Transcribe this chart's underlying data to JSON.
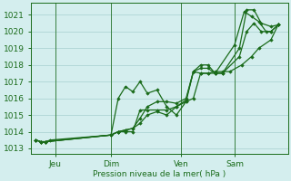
{
  "background_color": "#d4eeee",
  "grid_color": "#aed4d4",
  "line_color": "#1a6b1a",
  "marker_color": "#1a6b1a",
  "ylabel_ticks": [
    1013,
    1014,
    1015,
    1016,
    1017,
    1018,
    1019,
    1020,
    1021
  ],
  "ylim": [
    1012.7,
    1021.7
  ],
  "xlabel": "Pression niveau de la mer( hPa )",
  "day_labels": [
    "Jeu",
    "Dim",
    "Ven",
    "Sam"
  ],
  "day_positions": [
    0.08,
    0.31,
    0.6,
    0.82
  ],
  "series": [
    {
      "points": [
        [
          0.0,
          1013.5
        ],
        [
          0.02,
          1013.4
        ],
        [
          0.04,
          1013.4
        ],
        [
          0.06,
          1013.5
        ],
        [
          0.31,
          1013.8
        ],
        [
          0.34,
          1016.0
        ],
        [
          0.37,
          1016.7
        ],
        [
          0.4,
          1016.4
        ],
        [
          0.43,
          1017.0
        ],
        [
          0.46,
          1016.3
        ],
        [
          0.5,
          1016.5
        ],
        [
          0.54,
          1015.5
        ],
        [
          0.58,
          1015.0
        ],
        [
          0.62,
          1015.8
        ],
        [
          0.65,
          1017.6
        ],
        [
          0.68,
          1017.5
        ],
        [
          0.71,
          1017.5
        ],
        [
          0.74,
          1017.5
        ],
        [
          0.82,
          1019.2
        ],
        [
          0.86,
          1021.2
        ],
        [
          0.89,
          1020.9
        ],
        [
          0.92,
          1020.6
        ],
        [
          0.95,
          1020.0
        ],
        [
          0.97,
          1020.0
        ],
        [
          1.0,
          1020.4
        ]
      ]
    },
    {
      "points": [
        [
          0.0,
          1013.5
        ],
        [
          0.02,
          1013.4
        ],
        [
          0.04,
          1013.4
        ],
        [
          0.31,
          1013.8
        ],
        [
          0.34,
          1014.0
        ],
        [
          0.37,
          1014.0
        ],
        [
          0.4,
          1014.0
        ],
        [
          0.43,
          1015.3
        ],
        [
          0.46,
          1015.3
        ],
        [
          0.5,
          1015.3
        ],
        [
          0.54,
          1015.3
        ],
        [
          0.58,
          1015.5
        ],
        [
          0.62,
          1015.8
        ],
        [
          0.65,
          1016.0
        ],
        [
          0.68,
          1017.5
        ],
        [
          0.71,
          1017.5
        ],
        [
          0.74,
          1017.6
        ],
        [
          0.77,
          1017.6
        ],
        [
          0.8,
          1017.6
        ],
        [
          0.85,
          1018.0
        ],
        [
          0.89,
          1018.5
        ],
        [
          0.92,
          1019.0
        ],
        [
          0.97,
          1019.5
        ],
        [
          1.0,
          1020.4
        ]
      ]
    },
    {
      "points": [
        [
          0.0,
          1013.5
        ],
        [
          0.02,
          1013.4
        ],
        [
          0.04,
          1013.4
        ],
        [
          0.31,
          1013.8
        ],
        [
          0.34,
          1014.0
        ],
        [
          0.37,
          1014.1
        ],
        [
          0.4,
          1014.2
        ],
        [
          0.43,
          1014.5
        ],
        [
          0.46,
          1015.0
        ],
        [
          0.5,
          1015.2
        ],
        [
          0.54,
          1015.0
        ],
        [
          0.58,
          1015.5
        ],
        [
          0.62,
          1015.9
        ],
        [
          0.65,
          1017.6
        ],
        [
          0.68,
          1018.0
        ],
        [
          0.71,
          1018.0
        ],
        [
          0.74,
          1017.5
        ],
        [
          0.77,
          1017.5
        ],
        [
          0.84,
          1019.0
        ],
        [
          0.87,
          1021.3
        ],
        [
          0.9,
          1021.3
        ],
        [
          0.93,
          1020.5
        ],
        [
          0.97,
          1020.3
        ],
        [
          1.0,
          1020.4
        ]
      ]
    },
    {
      "points": [
        [
          0.0,
          1013.5
        ],
        [
          0.02,
          1013.4
        ],
        [
          0.04,
          1013.4
        ],
        [
          0.31,
          1013.8
        ],
        [
          0.34,
          1014.0
        ],
        [
          0.37,
          1014.1
        ],
        [
          0.4,
          1014.2
        ],
        [
          0.43,
          1014.8
        ],
        [
          0.46,
          1015.5
        ],
        [
          0.5,
          1015.8
        ],
        [
          0.54,
          1015.8
        ],
        [
          0.58,
          1015.7
        ],
        [
          0.62,
          1016.0
        ],
        [
          0.65,
          1017.6
        ],
        [
          0.68,
          1017.8
        ],
        [
          0.71,
          1017.8
        ],
        [
          0.74,
          1017.5
        ],
        [
          0.77,
          1017.5
        ],
        [
          0.84,
          1018.5
        ],
        [
          0.87,
          1020.0
        ],
        [
          0.9,
          1020.5
        ],
        [
          0.93,
          1020.0
        ],
        [
          0.97,
          1020.0
        ],
        [
          1.0,
          1020.4
        ]
      ]
    }
  ]
}
